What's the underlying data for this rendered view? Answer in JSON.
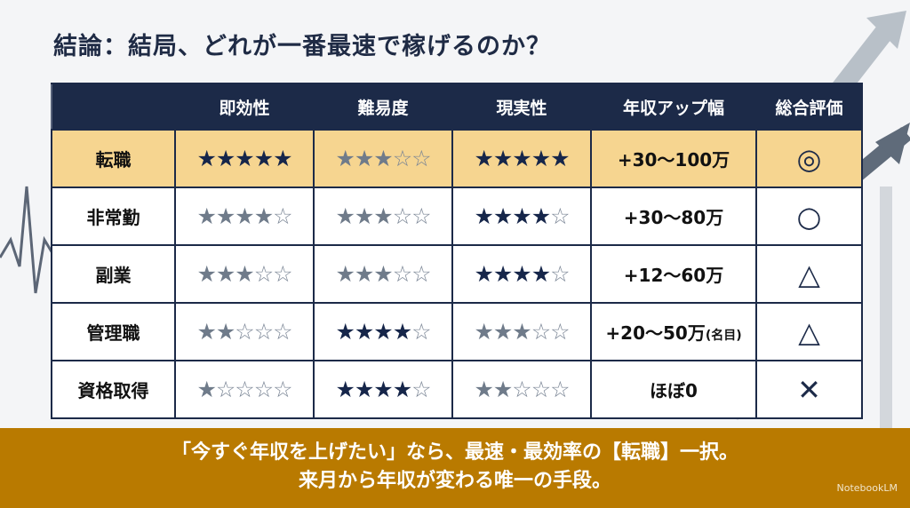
{
  "title": "結論：結局、どれが一番最速で稼げるのか？",
  "table": {
    "headers": [
      "",
      "即効性",
      "難易度",
      "現実性",
      "年収アップ幅",
      "総合評価"
    ],
    "rows": [
      {
        "label": "転職",
        "highlight": true,
        "ratings": [
          {
            "value": 5,
            "tone": "dark"
          },
          {
            "value": 3,
            "tone": "gray"
          },
          {
            "value": 5,
            "tone": "dark"
          }
        ],
        "range": "+30〜100万",
        "range_note": "",
        "verdict": "◎"
      },
      {
        "label": "非常勤",
        "highlight": false,
        "ratings": [
          {
            "value": 4,
            "tone": "gray"
          },
          {
            "value": 3,
            "tone": "gray"
          },
          {
            "value": 4,
            "tone": "dark"
          }
        ],
        "range": "+30〜80万",
        "range_note": "",
        "verdict": "○"
      },
      {
        "label": "副業",
        "highlight": false,
        "ratings": [
          {
            "value": 3,
            "tone": "gray"
          },
          {
            "value": 3,
            "tone": "gray"
          },
          {
            "value": 4,
            "tone": "dark"
          }
        ],
        "range": "+12〜60万",
        "range_note": "",
        "verdict": "△"
      },
      {
        "label": "管理職",
        "highlight": false,
        "ratings": [
          {
            "value": 2,
            "tone": "gray"
          },
          {
            "value": 4,
            "tone": "dark"
          },
          {
            "value": 3,
            "tone": "gray"
          }
        ],
        "range": "+20〜50万",
        "range_note": "(名目)",
        "verdict": "△"
      },
      {
        "label": "資格取得",
        "highlight": false,
        "ratings": [
          {
            "value": 1,
            "tone": "gray"
          },
          {
            "value": 4,
            "tone": "dark"
          },
          {
            "value": 2,
            "tone": "gray"
          }
        ],
        "range": "ほぼ0",
        "range_note": "",
        "verdict": "✕"
      }
    ],
    "max_stars": 5
  },
  "footer": {
    "line1": "「今すぐ年収を上げたい」なら、最速・最効率の【転職】一択。",
    "line2": "来月から年収が変わる唯一の手段。",
    "brand": "NotebookLM"
  },
  "colors": {
    "navy": "#1c2a48",
    "highlight": "#f6d590",
    "band": "#b97a00"
  }
}
